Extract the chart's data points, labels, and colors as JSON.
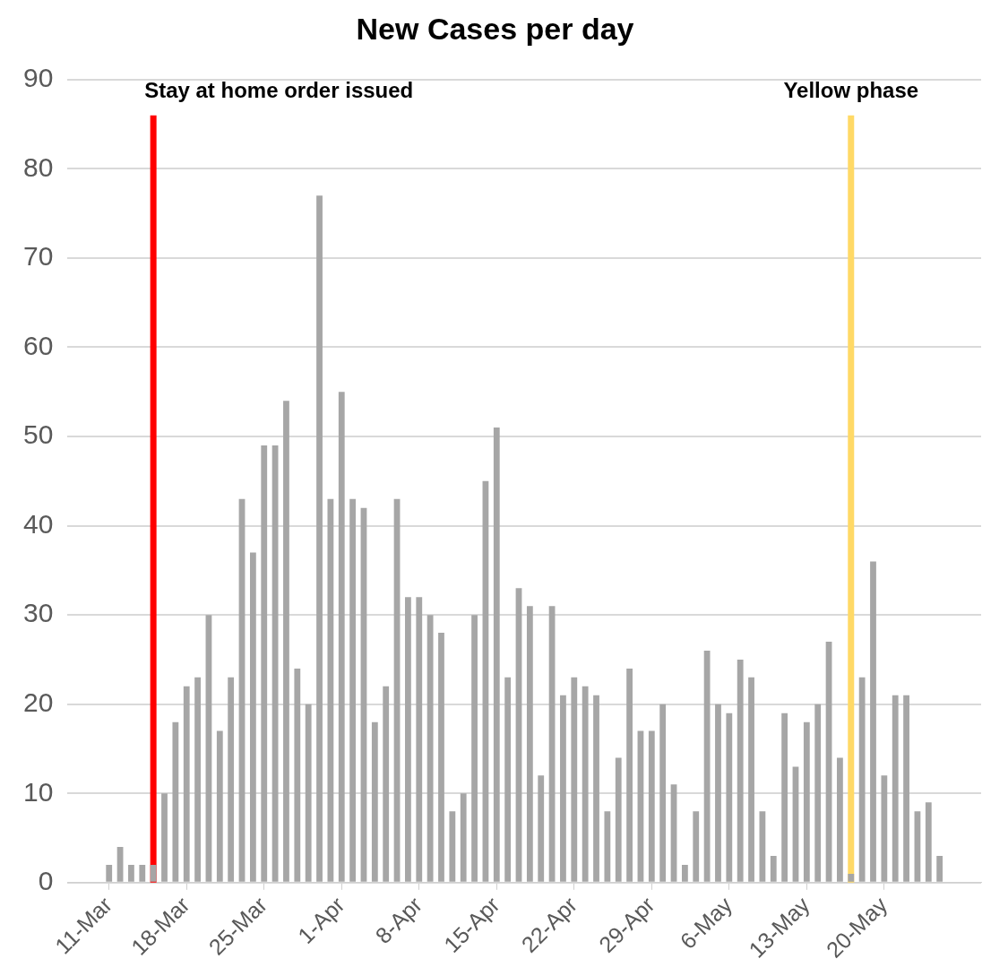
{
  "chart_data": {
    "type": "bar",
    "title": "New Cases per day",
    "x": [
      "--03-11",
      "--03-12",
      "--03-13",
      "--03-14",
      "--03-15",
      "--03-16",
      "--03-17",
      "--03-18",
      "--03-19",
      "--03-20",
      "--03-21",
      "--03-22",
      "--03-23",
      "--03-24",
      "--03-25",
      "--03-26",
      "--03-27",
      "--03-28",
      "--03-29",
      "--03-30",
      "--03-31",
      "--04-01",
      "--04-02",
      "--04-03",
      "--04-04",
      "--04-05",
      "--04-06",
      "--04-07",
      "--04-08",
      "--04-09",
      "--04-10",
      "--04-11",
      "--04-12",
      "--04-13",
      "--04-14",
      "--04-15",
      "--04-16",
      "--04-17",
      "--04-18",
      "--04-19",
      "--04-20",
      "--04-21",
      "--04-22",
      "--04-23",
      "--04-24",
      "--04-25",
      "--04-26",
      "--04-27",
      "--04-28",
      "--04-29",
      "--04-30",
      "--05-01",
      "--05-02",
      "--05-03",
      "--05-04",
      "--05-05",
      "--05-06",
      "--05-07",
      "--05-08",
      "--05-09",
      "--05-10",
      "--05-11",
      "--05-12",
      "--05-13",
      "--05-14",
      "--05-15",
      "--05-16",
      "--05-17",
      "--05-18",
      "--05-19",
      "--05-20",
      "--05-21",
      "--05-22",
      "--05-23",
      "--05-24",
      "--05-25"
    ],
    "values": [
      2,
      4,
      2,
      2,
      2,
      10,
      18,
      22,
      23,
      30,
      17,
      23,
      43,
      37,
      49,
      49,
      54,
      24,
      20,
      77,
      43,
      55,
      43,
      42,
      18,
      22,
      43,
      32,
      32,
      30,
      28,
      8,
      10,
      30,
      45,
      51,
      23,
      33,
      31,
      12,
      31,
      21,
      23,
      22,
      21,
      8,
      14,
      24,
      17,
      17,
      20,
      11,
      2,
      8,
      26,
      20,
      19,
      25,
      23,
      8,
      3,
      19,
      13,
      18,
      20,
      27,
      14,
      1,
      23,
      36,
      12,
      21,
      21,
      8,
      9,
      3
    ],
    "color": "#a6a6a6",
    "xlim": [
      "--03-11",
      "--05-25"
    ],
    "xticks": [
      {
        "value": "--03-11",
        "label": "11-Mar"
      },
      {
        "value": "--03-18",
        "label": "18-Mar"
      },
      {
        "value": "--03-25",
        "label": "25-Mar"
      },
      {
        "value": "--04-01",
        "label": "1-Apr"
      },
      {
        "value": "--04-08",
        "label": "8-Apr"
      },
      {
        "value": "--04-15",
        "label": "15-Apr"
      },
      {
        "value": "--04-22",
        "label": "22-Apr"
      },
      {
        "value": "--04-29",
        "label": "29-Apr"
      },
      {
        "value": "--05-06",
        "label": "6-May"
      },
      {
        "value": "--05-13",
        "label": "13-May"
      },
      {
        "value": "--05-20",
        "label": "20-May"
      }
    ],
    "ylim": [
      0,
      90
    ],
    "yticks": [
      0,
      10,
      20,
      30,
      40,
      50,
      60,
      70,
      80,
      90
    ],
    "grid": "y",
    "ref_lines": [
      {
        "axis": "x",
        "value": "--03-15",
        "label": "Stay at home order issued",
        "color": "#ff0000"
      },
      {
        "axis": "x",
        "value": "--05-17",
        "label": "Yellow phase",
        "color": "#ffd966"
      }
    ]
  }
}
